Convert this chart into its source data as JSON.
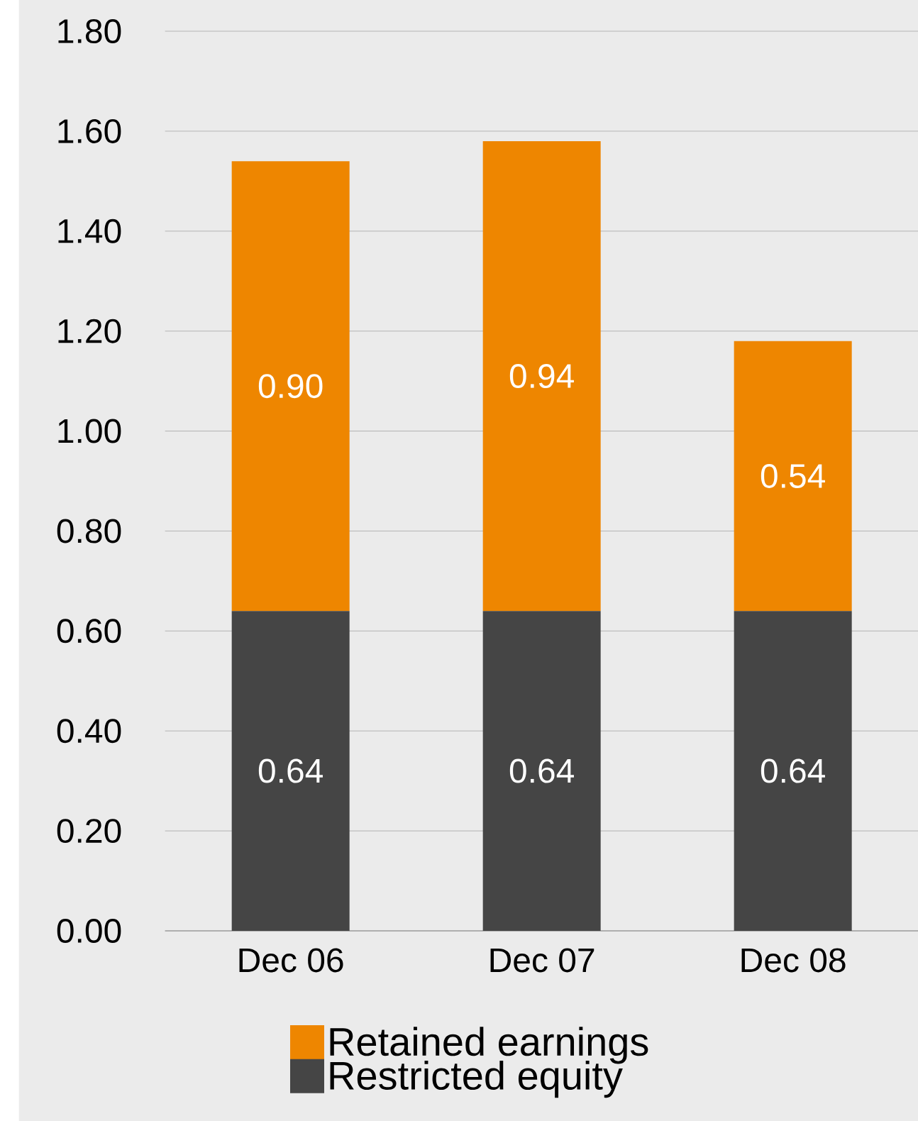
{
  "chart_data": {
    "type": "bar",
    "stacked": true,
    "categories": [
      "Dec 06",
      "Dec 07",
      "Dec 08"
    ],
    "series": [
      {
        "name": "Restricted equity",
        "color": "#454545",
        "values": [
          0.64,
          0.64,
          0.64
        ],
        "value_labels": [
          "0.64",
          "0.64",
          "0.64"
        ]
      },
      {
        "name": "Retained earnings",
        "color": "#ee8600",
        "values": [
          0.9,
          0.94,
          0.54
        ],
        "value_labels": [
          "0.90",
          "0.94",
          "0.54"
        ]
      }
    ],
    "ylim": [
      0,
      1.8
    ],
    "yticks": [
      {
        "value": 0,
        "label": "0.00"
      },
      {
        "value": 0.2,
        "label": "0.20"
      },
      {
        "value": 0.4,
        "label": "0.40"
      },
      {
        "value": 0.6,
        "label": "0.60"
      },
      {
        "value": 0.8,
        "label": "0.80"
      },
      {
        "value": 1.0,
        "label": "1.00"
      },
      {
        "value": 1.2,
        "label": "1.20"
      },
      {
        "value": 1.4,
        "label": "1.40"
      },
      {
        "value": 1.6,
        "label": "1.60"
      },
      {
        "value": 1.8,
        "label": "1.80"
      }
    ],
    "grid": "y",
    "legend": "bottom"
  }
}
